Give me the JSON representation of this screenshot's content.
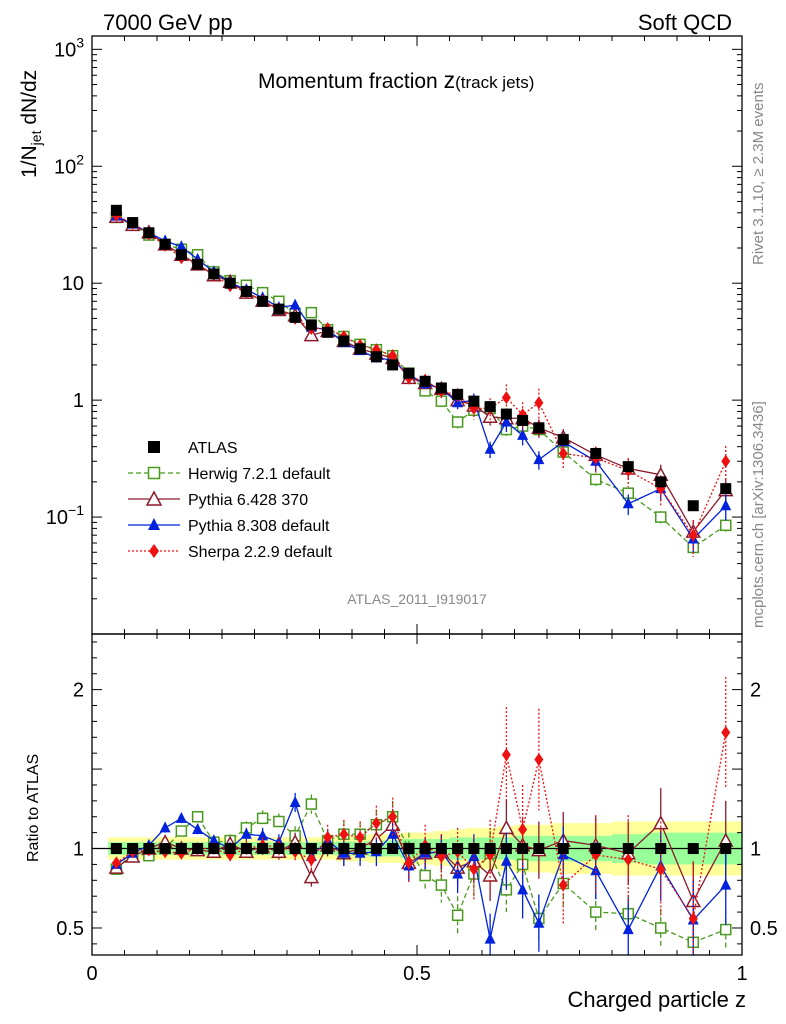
{
  "header": {
    "left": "7000 GeV pp",
    "right": "Soft QCD"
  },
  "side": {
    "rivet": "Rivet 3.1.10, ≥ 2.3M events",
    "mcplots": "mcplots.cern.ch [arXiv:1306.3436]"
  },
  "chart_data": {
    "type": "scatter",
    "title_main": "Momentum fraction ",
    "title_var": "z",
    "title_sub": "(track jets)",
    "analysis": "ATLAS_2011_I919017",
    "xlabel": "Charged particle z",
    "ylabel_main": "1/N",
    "ylabel_sub": "jet",
    "ylabel_tail": " dN/dz",
    "ylabel_ratio": "Ratio to ATLAS",
    "xlim": [
      0,
      1
    ],
    "ylim": [
      0.01,
      1300
    ],
    "yscale": "log",
    "ratio_ylim": [
      0.33,
      2.35
    ],
    "legend_position": "middle-left",
    "x_ticks": [
      "0",
      "0.5",
      "1"
    ],
    "y_ticks": [
      "10^-1",
      "1",
      "10",
      "10^2",
      "10^3"
    ],
    "ratio_ticks": [
      "0.5",
      "1",
      "2"
    ],
    "x": [
      0.0375,
      0.0625,
      0.0875,
      0.1125,
      0.1375,
      0.1625,
      0.1875,
      0.2125,
      0.2375,
      0.2625,
      0.2875,
      0.3125,
      0.3375,
      0.3625,
      0.3875,
      0.4125,
      0.4375,
      0.4625,
      0.4875,
      0.5125,
      0.5375,
      0.5625,
      0.5875,
      0.6125,
      0.6375,
      0.6625,
      0.6875,
      0.725,
      0.775,
      0.825,
      0.875,
      0.925,
      0.975
    ],
    "series": [
      {
        "name": "ATLAS",
        "color": "#000000",
        "marker": "square-filled",
        "values": [
          42,
          33,
          27,
          21.5,
          17.5,
          14.5,
          12,
          10,
          8.5,
          7,
          6,
          5.1,
          4.4,
          3.8,
          3.2,
          2.75,
          2.35,
          2.0,
          1.7,
          1.45,
          1.27,
          1.12,
          0.98,
          0.88,
          0.76,
          0.67,
          0.58,
          0.46,
          0.35,
          0.27,
          0.2,
          0.125,
          0.175
        ],
        "ratio": [
          1,
          1,
          1,
          1,
          1,
          1,
          1,
          1,
          1,
          1,
          1,
          1,
          1,
          1,
          1,
          1,
          1,
          1,
          1,
          1,
          1,
          1,
          1,
          1,
          1,
          1,
          1,
          1,
          1,
          1,
          1,
          1,
          1
        ],
        "band_inner": [
          0.04,
          0.04,
          0.04,
          0.04,
          0.04,
          0.04,
          0.04,
          0.04,
          0.04,
          0.04,
          0.04,
          0.04,
          0.04,
          0.04,
          0.045,
          0.045,
          0.05,
          0.05,
          0.06,
          0.06,
          0.06,
          0.07,
          0.07,
          0.07,
          0.07,
          0.08,
          0.08,
          0.08,
          0.08,
          0.09,
          0.1,
          0.1,
          0.1
        ],
        "band_outer": [
          0.07,
          0.07,
          0.07,
          0.07,
          0.07,
          0.07,
          0.07,
          0.07,
          0.07,
          0.07,
          0.07,
          0.07,
          0.07,
          0.07,
          0.08,
          0.08,
          0.09,
          0.09,
          0.1,
          0.1,
          0.11,
          0.12,
          0.13,
          0.13,
          0.14,
          0.15,
          0.15,
          0.16,
          0.16,
          0.17,
          0.17,
          0.17,
          0.17
        ]
      },
      {
        "name": "Herwig 7.2.1 default",
        "color": "#4a9a1f",
        "marker": "square-open",
        "dash": "5,3",
        "values": [
          36.5,
          32,
          25.8,
          21.5,
          19.5,
          17.5,
          12.5,
          10.5,
          9.6,
          8.3,
          7.0,
          5.5,
          5.6,
          4.0,
          3.5,
          3.0,
          2.7,
          2.4,
          1.7,
          1.2,
          0.98,
          0.65,
          0.82,
          0.85,
          0.56,
          0.6,
          0.56,
          0.36,
          0.21,
          0.16,
          0.1,
          0.055,
          0.085
        ],
        "ratio": [
          0.87,
          0.97,
          0.955,
          1.0,
          1.11,
          1.2,
          1.04,
          1.05,
          1.13,
          1.19,
          1.17,
          1.08,
          1.28,
          1.05,
          1.09,
          1.09,
          1.15,
          1.2,
          1.0,
          0.83,
          0.77,
          0.58,
          0.84,
          0.97,
          0.74,
          0.9,
          0.56,
          0.78,
          0.6,
          0.59,
          0.5,
          0.41,
          0.49
        ],
        "err": [
          0.02,
          0.02,
          0.02,
          0.03,
          0.03,
          0.03,
          0.03,
          0.04,
          0.04,
          0.05,
          0.05,
          0.06,
          0.06,
          0.07,
          0.08,
          0.08,
          0.09,
          0.1,
          0.1,
          0.1,
          0.11,
          0.12,
          0.14,
          0.14,
          0.14,
          0.15,
          0.15,
          0.14,
          0.12,
          0.12,
          0.12,
          0.11,
          0.12
        ]
      },
      {
        "name": "Pythia 6.428 370",
        "color": "#8b1a2a",
        "marker": "triangle-open",
        "dash": "",
        "values": [
          37,
          31.5,
          27.2,
          21.5,
          17.5,
          14.5,
          11.7,
          10.3,
          8.3,
          7.1,
          5.9,
          5.3,
          3.6,
          3.9,
          3.2,
          2.75,
          2.5,
          2.3,
          1.55,
          1.4,
          1.25,
          1.0,
          0.9,
          0.72,
          0.7,
          0.7,
          0.58,
          0.48,
          0.34,
          0.26,
          0.23,
          0.075,
          0.17
        ],
        "ratio": [
          0.88,
          0.95,
          1.0,
          1.04,
          1.0,
          0.99,
          0.98,
          1.03,
          0.98,
          1.01,
          0.98,
          1.04,
          0.82,
          1.02,
          0.97,
          1.0,
          1.06,
          1.15,
          0.91,
          0.97,
          0.98,
          0.88,
          0.92,
          0.83,
          1.13,
          1.02,
          0.99,
          1.05,
          1.02,
          0.97,
          1.16,
          0.67,
          1.05
        ],
        "err": [
          0.02,
          0.02,
          0.02,
          0.03,
          0.03,
          0.03,
          0.03,
          0.04,
          0.04,
          0.05,
          0.05,
          0.06,
          0.06,
          0.07,
          0.08,
          0.08,
          0.09,
          0.1,
          0.1,
          0.1,
          0.11,
          0.12,
          0.14,
          0.16,
          0.18,
          0.18,
          0.18,
          0.18,
          0.18,
          0.2,
          0.22,
          0.25,
          0.25
        ]
      },
      {
        "name": "Pythia 8.308 default",
        "color": "#0022dd",
        "marker": "triangle-filled",
        "dash": "",
        "values": [
          37.5,
          32,
          27,
          23,
          20.5,
          16,
          12.5,
          10.1,
          8.8,
          7.5,
          6.2,
          6.5,
          4.2,
          4.0,
          3.1,
          2.65,
          2.3,
          2.2,
          1.65,
          1.38,
          1.25,
          0.95,
          1.0,
          0.38,
          0.65,
          0.5,
          0.31,
          0.44,
          0.3,
          0.13,
          0.175,
          0.065,
          0.125
        ],
        "ratio": [
          0.9,
          0.97,
          1.02,
          1.13,
          1.19,
          1.12,
          1.05,
          1.0,
          1.09,
          1.08,
          1.04,
          1.29,
          0.95,
          1.05,
          0.97,
          0.97,
          0.98,
          1.09,
          0.89,
          0.97,
          0.98,
          0.84,
          0.95,
          0.43,
          0.92,
          0.74,
          0.53,
          0.96,
          0.86,
          0.49,
          0.89,
          0.55,
          0.77
        ],
        "err": [
          0.02,
          0.02,
          0.02,
          0.03,
          0.03,
          0.03,
          0.03,
          0.04,
          0.04,
          0.05,
          0.05,
          0.06,
          0.06,
          0.07,
          0.08,
          0.08,
          0.09,
          0.1,
          0.1,
          0.1,
          0.11,
          0.12,
          0.14,
          0.16,
          0.18,
          0.18,
          0.18,
          0.18,
          0.18,
          0.2,
          0.22,
          0.25,
          0.25
        ]
      },
      {
        "name": "Sherpa 2.2.9 default",
        "color": "#ee1111",
        "marker": "diamond-filled",
        "dash": "2,2",
        "values": [
          38,
          32.5,
          26.5,
          21,
          16.5,
          14.5,
          11.8,
          9.5,
          8.4,
          7.1,
          6.0,
          5.0,
          4.1,
          4.1,
          3.5,
          2.95,
          2.7,
          2.4,
          1.55,
          1.48,
          1.2,
          1.1,
          0.85,
          0.85,
          1.05,
          0.75,
          0.95,
          0.35,
          0.32,
          0.25,
          0.175,
          0.07,
          0.3
        ],
        "ratio": [
          0.91,
          0.98,
          0.99,
          0.98,
          0.97,
          1.0,
          1.0,
          0.96,
          1.0,
          1.02,
          1.01,
          0.98,
          0.93,
          1.07,
          1.09,
          1.07,
          1.16,
          1.2,
          0.91,
          1.02,
          0.95,
          0.98,
          0.87,
          0.96,
          1.59,
          1.12,
          1.56,
          0.77,
          0.96,
          0.93,
          0.87,
          0.56,
          1.73
        ],
        "err": [
          0.02,
          0.02,
          0.02,
          0.03,
          0.03,
          0.03,
          0.03,
          0.04,
          0.05,
          0.05,
          0.06,
          0.06,
          0.07,
          0.08,
          0.09,
          0.1,
          0.11,
          0.12,
          0.12,
          0.13,
          0.14,
          0.15,
          0.2,
          0.22,
          0.3,
          0.28,
          0.32,
          0.25,
          0.25,
          0.28,
          0.3,
          0.35,
          0.35
        ]
      }
    ]
  }
}
